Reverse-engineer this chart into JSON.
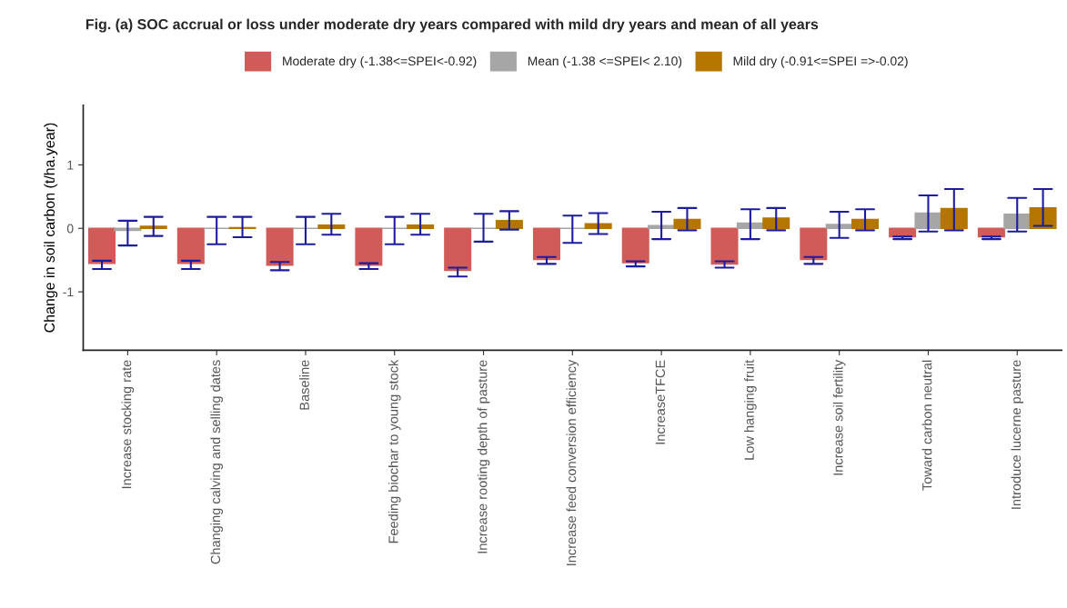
{
  "chart_data": {
    "type": "bar",
    "title": "Fig. (a) SOC accrual or loss under moderate dry years compared with mild dry years and mean of all years",
    "ylabel": "Change in soil carbon (t/ha.year)",
    "categories": [
      "Increase stocking rate",
      "Changing calving and selling dates",
      "Baseline",
      "Feeding biochar to young stock",
      "Increase rooting depth of pasture",
      "Increase feed conversion efficiency",
      "IncreaseTFCE",
      "Low hanging fruit",
      "Increase soil fertility",
      "Toward carbon neutral",
      "Introduce lucerne pasture"
    ],
    "series": [
      {
        "name": "Moderate dry (-1.38<=SPEI<-0.92)",
        "color": "#d05b58",
        "values": [
          -0.55,
          -0.55,
          -0.58,
          -0.58,
          -0.66,
          -0.49,
          -0.54,
          -0.56,
          -0.49,
          -0.13,
          -0.13
        ],
        "errors": [
          [
            -0.64,
            -0.51
          ],
          [
            -0.64,
            -0.51
          ],
          [
            -0.66,
            -0.53
          ],
          [
            -0.64,
            -0.55
          ],
          [
            -0.76,
            -0.62
          ],
          [
            -0.56,
            -0.45
          ],
          [
            -0.6,
            -0.52
          ],
          [
            -0.62,
            -0.52
          ],
          [
            -0.56,
            -0.45
          ],
          [
            -0.17,
            -0.13
          ],
          [
            -0.17,
            -0.13
          ]
        ]
      },
      {
        "name": "Mean (-1.38 <=SPEI< 2.10)",
        "color": "#a6a6a6",
        "values": [
          -0.03,
          0.0,
          0.0,
          0.0,
          0.0,
          0.0,
          0.04,
          0.08,
          0.06,
          0.24,
          0.22
        ],
        "errors": [
          [
            -0.27,
            0.12
          ],
          [
            -0.25,
            0.18
          ],
          [
            -0.25,
            0.18
          ],
          [
            -0.25,
            0.18
          ],
          [
            -0.21,
            0.23
          ],
          [
            -0.23,
            0.2
          ],
          [
            -0.17,
            0.26
          ],
          [
            -0.17,
            0.3
          ],
          [
            -0.15,
            0.26
          ],
          [
            -0.05,
            0.52
          ],
          [
            -0.05,
            0.48
          ]
        ]
      },
      {
        "name": "Mild dry (-0.91<=SPEI =>-0.02)",
        "color": "#b57600",
        "values": [
          0.03,
          0.01,
          0.05,
          0.05,
          0.12,
          0.07,
          0.14,
          0.16,
          0.14,
          0.31,
          0.32
        ],
        "errors": [
          [
            -0.12,
            0.18
          ],
          [
            -0.14,
            0.18
          ],
          [
            -0.1,
            0.23
          ],
          [
            -0.1,
            0.23
          ],
          [
            -0.02,
            0.27
          ],
          [
            -0.09,
            0.24
          ],
          [
            -0.03,
            0.32
          ],
          [
            -0.03,
            0.32
          ],
          [
            -0.03,
            0.3
          ],
          [
            -0.03,
            0.62
          ],
          [
            0.04,
            0.62
          ]
        ]
      }
    ],
    "ylim": [
      -1.92,
      1.94
    ],
    "yticks": [
      -1,
      0,
      1
    ],
    "grid": false,
    "legend": "top"
  }
}
